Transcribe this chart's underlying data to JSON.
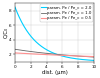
{
  "title": "",
  "xlabel": "dist. (µm)",
  "ylabel": "C/C₀",
  "xlim": [
    0,
    10
  ],
  "ylim": [
    1,
    9
  ],
  "yticks": [
    2,
    4,
    6,
    8
  ],
  "xticks": [
    0,
    2,
    4,
    6,
    8,
    10
  ],
  "lines": [
    {
      "label": "param. Pe / Pe_c = 2.0",
      "color": "#00cfff",
      "lw": 0.8,
      "A": 7.5,
      "decay": 0.38
    },
    {
      "label": "param. Pe / Pe_c = 1.0",
      "color": "#666666",
      "lw": 0.6,
      "A": 1.7,
      "decay": 0.1
    },
    {
      "label": "param. Pe / Pe_c = 0.5",
      "color": "#ff9090",
      "lw": 0.8,
      "A": 1.2,
      "decay": 0.055
    }
  ],
  "grid_color": "#cccccc",
  "bg_color": "#ffffff",
  "legend_fontsize": 2.8,
  "axis_fontsize": 3.8,
  "tick_fontsize": 3.0
}
